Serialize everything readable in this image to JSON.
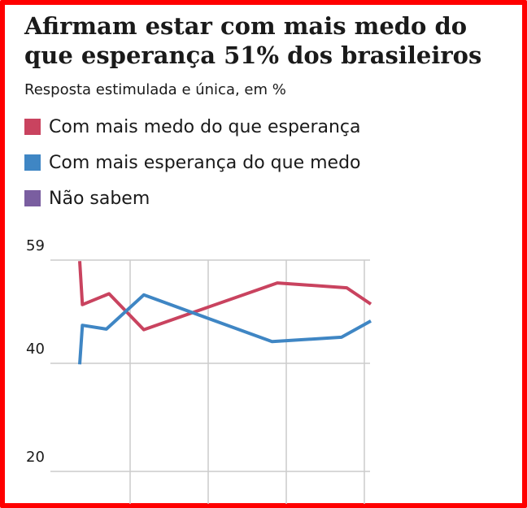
{
  "chart_data": {
    "type": "line",
    "title": "Afirmam estar com mais medo do que esperança 51% dos brasileiros",
    "subtitle": "Resposta estimulada e única, em %",
    "ylim": [
      20,
      59
    ],
    "yticks": [
      {
        "label": "59",
        "value": 59
      },
      {
        "label": "40",
        "value": 40
      },
      {
        "label": "20",
        "value": 20
      }
    ],
    "grid": true,
    "legend_position": "top-left",
    "series": [
      {
        "name": "Com mais medo do que esperança",
        "color": "#c9435f",
        "points": [
          [
            0,
            58.8
          ],
          [
            0.5,
            50.8
          ],
          [
            5.5,
            52.8
          ],
          [
            12.0,
            46.2
          ],
          [
            37.0,
            54.8
          ],
          [
            50.0,
            53.9
          ],
          [
            54.5,
            50.9
          ]
        ]
      },
      {
        "name": "Com mais esperança do que medo",
        "color": "#3f86c4",
        "points": [
          [
            0,
            39.8
          ],
          [
            0.5,
            47.0
          ],
          [
            5.0,
            46.3
          ],
          [
            12.0,
            52.6
          ],
          [
            36.0,
            44.0
          ],
          [
            49.0,
            44.8
          ],
          [
            54.5,
            47.8
          ]
        ]
      },
      {
        "name": "Não sabem",
        "color": "#7a5ea0",
        "points": []
      }
    ]
  }
}
